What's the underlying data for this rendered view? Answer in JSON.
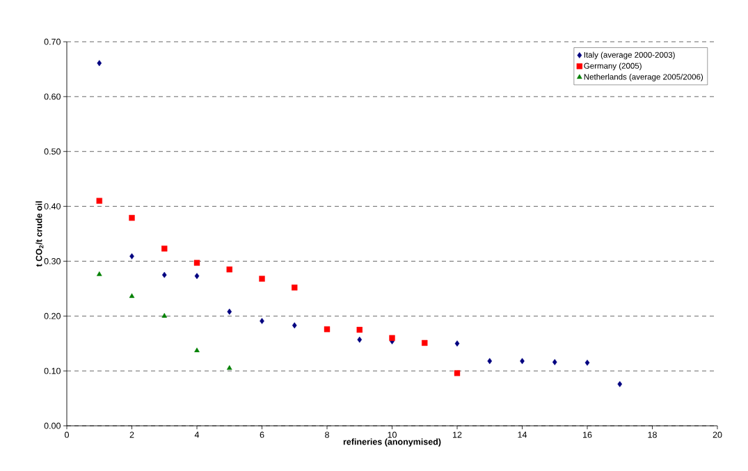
{
  "chart_data": {
    "type": "scatter",
    "xlabel": "refineries (anonymised)",
    "ylabel": "t CO$_{2}$/t crude oil",
    "xlim": [
      0,
      20
    ],
    "xticks": [
      0,
      2,
      4,
      6,
      8,
      10,
      12,
      14,
      16,
      18,
      20
    ],
    "ylim": [
      0,
      0.7
    ],
    "yticks": [
      {
        "value": 0,
        "label": "0.00"
      },
      {
        "value": 0.1,
        "label": "0.10"
      },
      {
        "value": 0.2,
        "label": "0.20"
      },
      {
        "value": 0.3,
        "label": "0.30"
      },
      {
        "value": 0.4,
        "label": "0.40"
      },
      {
        "value": 0.5,
        "label": "0.50"
      },
      {
        "value": 0.6,
        "label": "0.60"
      },
      {
        "value": 0.7,
        "label": "0.70"
      }
    ],
    "grid": "y",
    "legend": "top right",
    "series": [
      {
        "name": "Italy (average 2000-2003)",
        "color": "#000080",
        "marker": "diamond",
        "x": [
          1,
          2,
          3,
          4,
          5,
          6,
          7,
          8,
          9,
          10,
          11,
          12,
          13,
          14,
          15,
          16,
          17
        ],
        "values": [
          0.661,
          0.309,
          0.275,
          0.273,
          0.208,
          0.191,
          0.183,
          null,
          0.157,
          0.154,
          null,
          0.15,
          0.118,
          0.118,
          0.116,
          0.115,
          0.076
        ]
      },
      {
        "name": "Germany (2005)",
        "color": "#ff0000",
        "marker": "square",
        "x": [
          1,
          2,
          3,
          4,
          5,
          6,
          7,
          8,
          9,
          10,
          11,
          12
        ],
        "values": [
          0.41,
          0.379,
          0.323,
          0.297,
          0.285,
          0.268,
          0.252,
          0.176,
          0.175,
          0.16,
          0.151,
          0.096
        ]
      },
      {
        "name": "Netherlands (average 2005/2006)",
        "color": "#008000",
        "marker": "triangle",
        "x": [
          1,
          2,
          3,
          4,
          5
        ],
        "values": [
          0.276,
          0.236,
          0.2,
          0.137,
          0.105
        ]
      }
    ]
  }
}
